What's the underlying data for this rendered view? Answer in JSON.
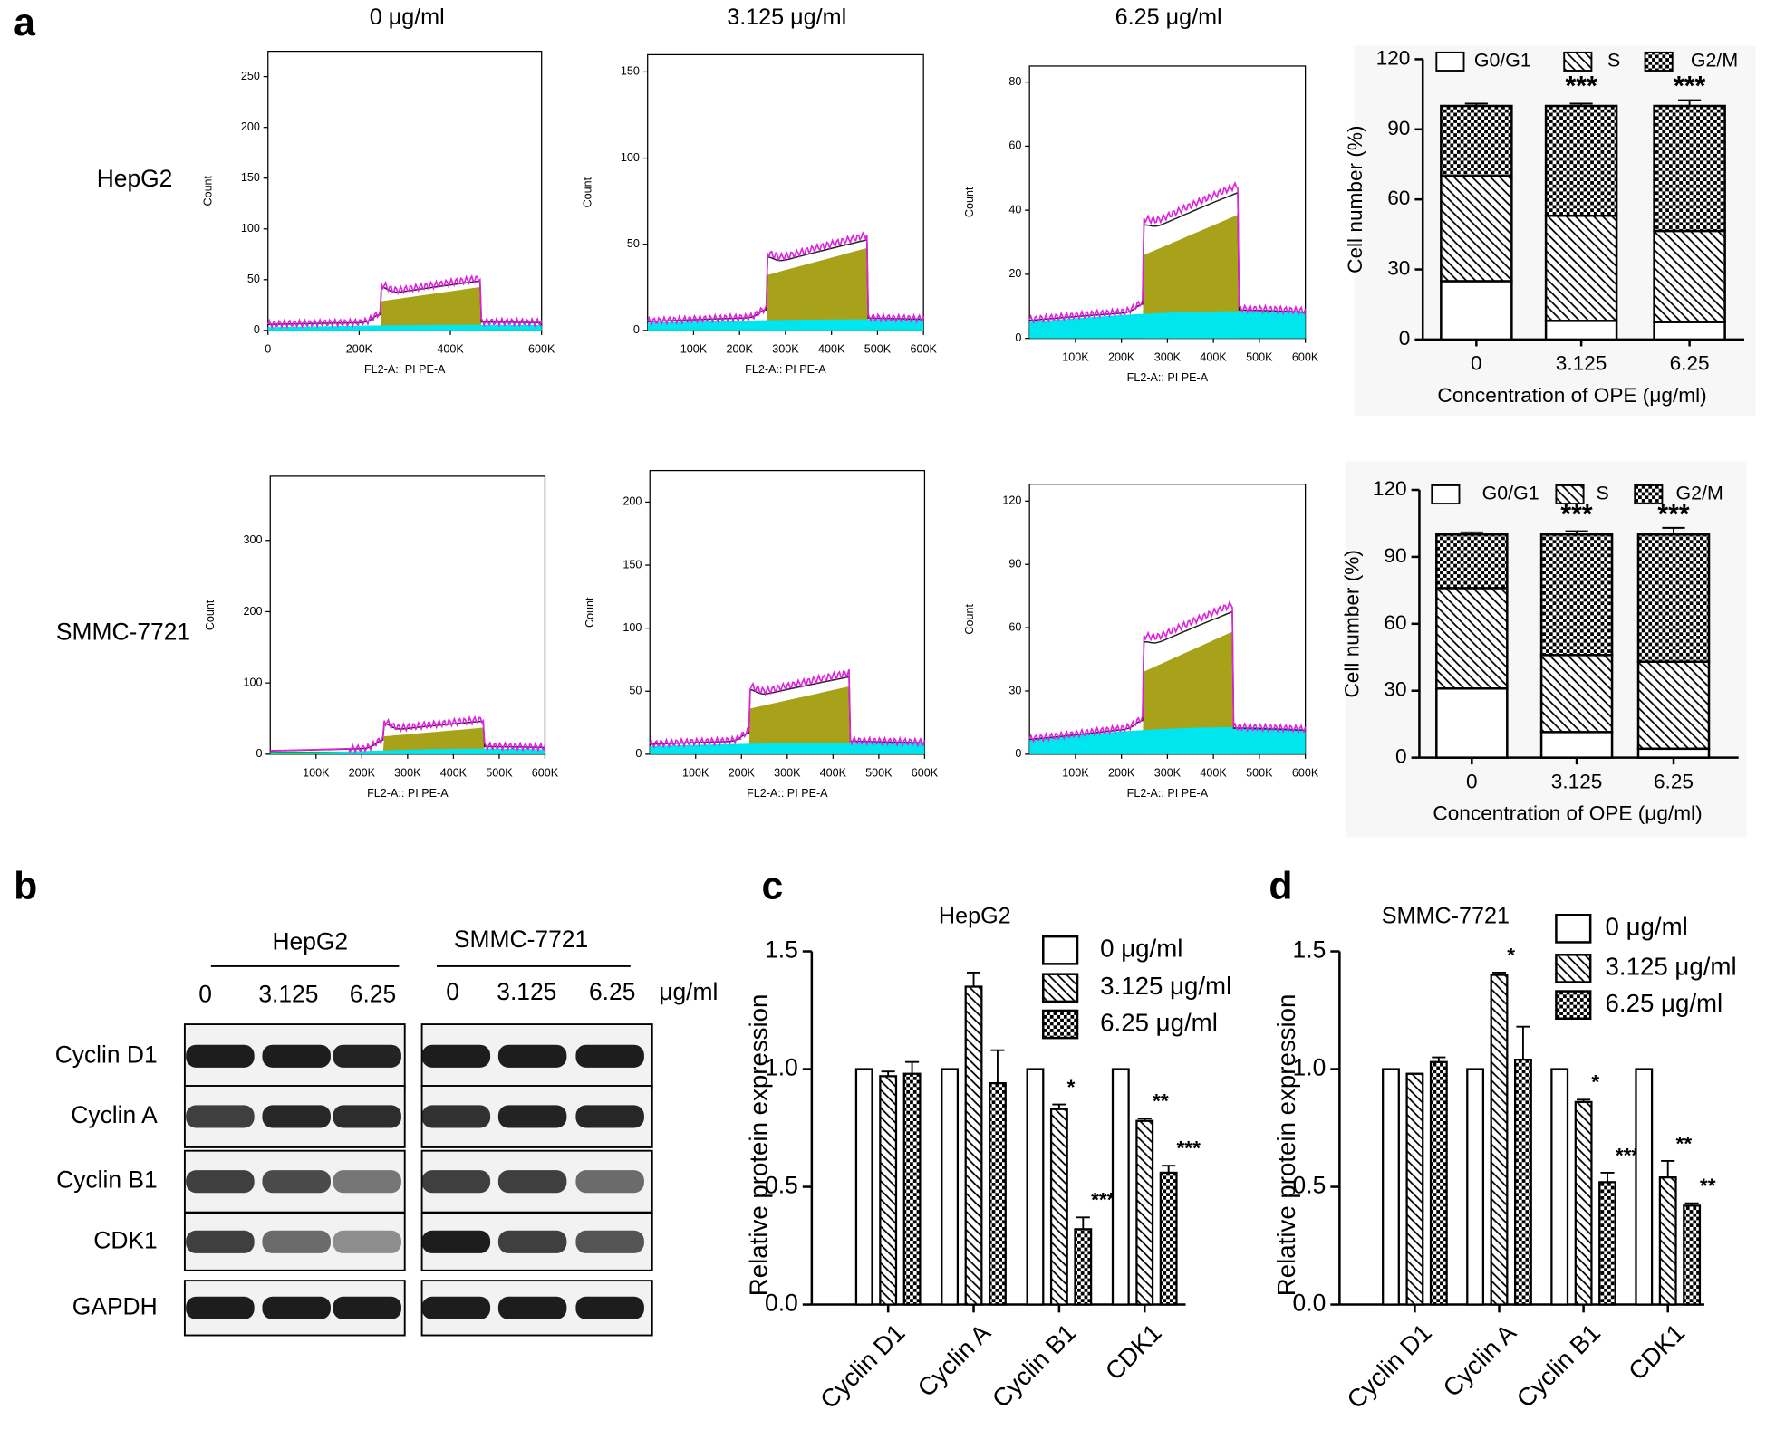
{
  "figure": {
    "panel_labels": [
      "a",
      "b",
      "c",
      "d"
    ],
    "column_titles": [
      "0 μg/ml",
      "3.125 μg/ml",
      "6.25 μg/ml"
    ],
    "row_labels": [
      "HepG2",
      "SMMC-7721"
    ]
  },
  "blot": {
    "groups": [
      "HepG2",
      "SMMC-7721"
    ],
    "lanes": [
      "0",
      "3.125",
      "6.25",
      "0",
      "3.125",
      "6.25"
    ],
    "unit": "μg/ml",
    "proteins": [
      "Cyclin D1",
      "Cyclin A",
      "Cyclin B1",
      "CDK1",
      "GAPDH"
    ]
  },
  "chart_data": [
    {
      "type": "flow-histogram",
      "ylabel": "Count",
      "xlabel": "FL2-A:: PI PE-A",
      "xlim": [
        0,
        600000
      ],
      "ylim": [
        0,
        275
      ],
      "xticks": [
        0,
        {
          "value": 200000,
          "label": "200K"
        },
        {
          "value": 400000,
          "label": "400K"
        },
        {
          "value": 600000,
          "label": "600K"
        }
      ],
      "yticks": [
        0,
        50,
        100,
        150,
        200,
        250
      ]
    },
    {
      "type": "flow-histogram",
      "ylabel": "Count",
      "xlabel": "FL2-A:: PI PE-A",
      "xlim": [
        0,
        600000
      ],
      "ylim": [
        0,
        160
      ],
      "xticks": [
        {
          "value": 100000,
          "label": "100K"
        },
        {
          "value": 200000,
          "label": "200K"
        },
        {
          "value": 300000,
          "label": "300K"
        },
        {
          "value": 400000,
          "label": "400K"
        },
        {
          "value": 500000,
          "label": "500K"
        },
        {
          "value": 600000,
          "label": "600K"
        }
      ],
      "yticks": [
        0,
        50,
        100,
        150
      ]
    },
    {
      "type": "flow-histogram",
      "ylabel": "Count",
      "xlabel": "FL2-A:: PI PE-A",
      "xlim": [
        0,
        600000
      ],
      "ylim": [
        0,
        85
      ],
      "xticks": [
        {
          "value": 100000,
          "label": "100K"
        },
        {
          "value": 200000,
          "label": "200K"
        },
        {
          "value": 300000,
          "label": "300K"
        },
        {
          "value": 400000,
          "label": "400K"
        },
        {
          "value": 500000,
          "label": "500K"
        },
        {
          "value": 600000,
          "label": "600K"
        }
      ],
      "yticks": [
        0,
        20,
        40,
        60,
        80
      ]
    },
    {
      "type": "flow-histogram",
      "ylabel": "Count",
      "xlabel": "FL2-A:: PI PE-A",
      "xlim": [
        0,
        600000
      ],
      "ylim": [
        0,
        390
      ],
      "xticks": [
        {
          "value": 100000,
          "label": "100K"
        },
        {
          "value": 200000,
          "label": "200K"
        },
        {
          "value": 300000,
          "label": "300K"
        },
        {
          "value": 400000,
          "label": "400K"
        },
        {
          "value": 500000,
          "label": "500K"
        },
        {
          "value": 600000,
          "label": "600K"
        }
      ],
      "yticks": [
        0,
        100,
        200,
        300
      ]
    },
    {
      "type": "flow-histogram",
      "ylabel": "Count",
      "xlabel": "FL2-A:: PI PE-A",
      "xlim": [
        0,
        600000
      ],
      "ylim": [
        0,
        225
      ],
      "xticks": [
        {
          "value": 100000,
          "label": "100K"
        },
        {
          "value": 200000,
          "label": "200K"
        },
        {
          "value": 300000,
          "label": "300K"
        },
        {
          "value": 400000,
          "label": "400K"
        },
        {
          "value": 500000,
          "label": "500K"
        },
        {
          "value": 600000,
          "label": "600K"
        }
      ],
      "yticks": [
        0,
        50,
        100,
        150,
        200
      ]
    },
    {
      "type": "flow-histogram",
      "ylabel": "Count",
      "xlabel": "FL2-A:: PI PE-A",
      "xlim": [
        0,
        600000
      ],
      "ylim": [
        0,
        128
      ],
      "xticks": [
        {
          "value": 100000,
          "label": "100K"
        },
        {
          "value": 200000,
          "label": "200K"
        },
        {
          "value": 300000,
          "label": "300K"
        },
        {
          "value": 400000,
          "label": "400K"
        },
        {
          "value": 500000,
          "label": "500K"
        },
        {
          "value": 600000,
          "label": "600K"
        }
      ],
      "yticks": [
        0,
        30,
        60,
        90,
        120
      ]
    },
    {
      "type": "stacked-bar",
      "ylabel": "Cell number (%)",
      "xlabel": "Concentration of OPE (μg/ml)",
      "categories": [
        "0",
        "3.125",
        "6.25"
      ],
      "ylim": [
        0,
        120
      ],
      "yticks": [
        0,
        30,
        60,
        90,
        120
      ],
      "series": [
        {
          "name": "G0/G1",
          "pattern": "solid",
          "values": [
            25,
            8,
            7.5
          ],
          "errors": [
            0.5,
            0.8,
            0.5
          ]
        },
        {
          "name": "S",
          "pattern": "hatch",
          "values": [
            45,
            45,
            39
          ],
          "errors": [
            1,
            1,
            0.8
          ]
        },
        {
          "name": "G2/M",
          "pattern": "checker",
          "values": [
            30,
            47,
            53.5
          ],
          "errors": [
            1,
            1,
            2.5
          ]
        }
      ],
      "significance": [
        null,
        "***",
        "***"
      ]
    },
    {
      "type": "stacked-bar",
      "ylabel": "Cell number (%)",
      "xlabel": "Concentration of OPE (μg/ml)",
      "categories": [
        "0",
        "3.125",
        "6.25"
      ],
      "ylim": [
        0,
        120
      ],
      "yticks": [
        0,
        30,
        60,
        90,
        120
      ],
      "series": [
        {
          "name": "G0/G1",
          "pattern": "solid",
          "values": [
            31,
            11.5,
            4
          ],
          "errors": [
            0.5,
            0.5,
            1.5
          ]
        },
        {
          "name": "S",
          "pattern": "hatch",
          "values": [
            45,
            34.5,
            39
          ],
          "errors": [
            0.8,
            1,
            0.8
          ]
        },
        {
          "name": "G2/M",
          "pattern": "checker",
          "values": [
            24,
            54,
            57
          ],
          "errors": [
            1,
            1.5,
            3
          ]
        }
      ],
      "significance": [
        null,
        "***",
        "***"
      ]
    },
    {
      "type": "grouped-bar",
      "title": "HepG2",
      "ylabel": "Relative protein expression",
      "categories": [
        "Cyclin D1",
        "Cyclin A",
        "Cyclin B1",
        "CDK1"
      ],
      "ylim": [
        0,
        1.5
      ],
      "yticks": [
        {
          "value": 0,
          "label": "0.0"
        },
        0.5,
        {
          "value": 1,
          "label": "1.0"
        },
        1.5
      ],
      "series": [
        {
          "name": "0 μg/ml",
          "pattern": "solid",
          "values": [
            1,
            1,
            1,
            1
          ],
          "errors": [
            0,
            0,
            0,
            0
          ],
          "significance": [
            null,
            null,
            null,
            null
          ]
        },
        {
          "name": "3.125 μg/ml",
          "pattern": "hatch",
          "values": [
            0.97,
            1.35,
            0.83,
            0.78
          ],
          "errors": [
            0.02,
            0.06,
            0.02,
            0.01
          ],
          "significance": [
            null,
            null,
            "*",
            "**"
          ]
        },
        {
          "name": "6.25 μg/ml",
          "pattern": "checker",
          "values": [
            0.98,
            0.94,
            0.32,
            0.56
          ],
          "errors": [
            0.05,
            0.14,
            0.05,
            0.03
          ],
          "significance": [
            null,
            null,
            "***",
            "***"
          ]
        }
      ]
    },
    {
      "type": "grouped-bar",
      "title": "SMMC-7721",
      "ylabel": "Relative protein expression",
      "categories": [
        "Cyclin D1",
        "Cyclin A",
        "Cyclin B1",
        "CDK1"
      ],
      "ylim": [
        0,
        1.5
      ],
      "yticks": [
        {
          "value": 0,
          "label": "0.0"
        },
        0.5,
        {
          "value": 1,
          "label": "1.0"
        },
        1.5
      ],
      "series": [
        {
          "name": "0 μg/ml",
          "pattern": "solid",
          "values": [
            1,
            1,
            1,
            1
          ],
          "errors": [
            0,
            0,
            0,
            0
          ],
          "significance": [
            null,
            null,
            null,
            null
          ]
        },
        {
          "name": "3.125 μg/ml",
          "pattern": "hatch",
          "values": [
            0.98,
            1.4,
            0.86,
            0.54
          ],
          "errors": [
            0,
            0.01,
            0.01,
            0.07
          ],
          "significance": [
            null,
            "*",
            "*",
            "**"
          ]
        },
        {
          "name": "6.25 μg/ml",
          "pattern": "checker",
          "values": [
            1.03,
            1.04,
            0.52,
            0.42
          ],
          "errors": [
            0.02,
            0.14,
            0.04,
            0.01
          ],
          "significance": [
            null,
            null,
            "***",
            "**"
          ]
        }
      ]
    }
  ]
}
